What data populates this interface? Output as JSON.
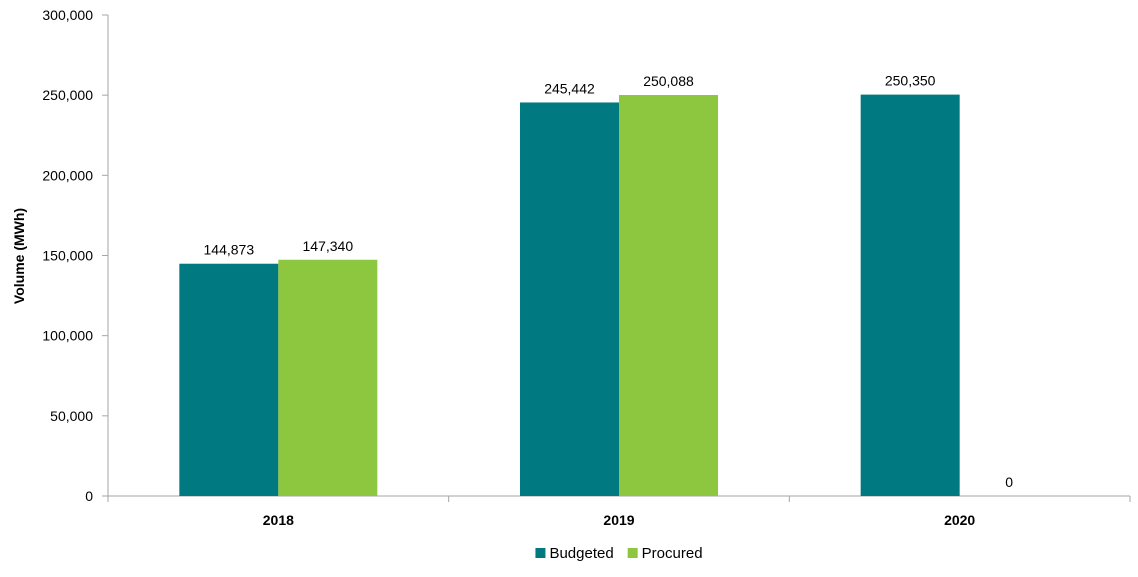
{
  "chart_data": {
    "type": "bar",
    "title": "",
    "xlabel": "",
    "ylabel": "Volume (MWh)",
    "ylim": [
      0,
      300000
    ],
    "yticks": [
      0,
      50000,
      100000,
      150000,
      200000,
      250000,
      300000
    ],
    "ytick_labels": [
      "0",
      "50,000",
      "100,000",
      "150,000",
      "200,000",
      "250,000",
      "300,000"
    ],
    "categories": [
      "2018",
      "2019",
      "2020"
    ],
    "series": [
      {
        "name": "Budgeted",
        "color": "#007A80",
        "values": [
          144873,
          245442,
          250350
        ],
        "labels": [
          "144,873",
          "245,442",
          "250,350"
        ]
      },
      {
        "name": "Procured",
        "color": "#8DC63F",
        "values": [
          147340,
          250088,
          0
        ],
        "labels": [
          "147,340",
          "250,088",
          "0"
        ]
      }
    ],
    "grid": false,
    "legend_position": "bottom-center"
  }
}
